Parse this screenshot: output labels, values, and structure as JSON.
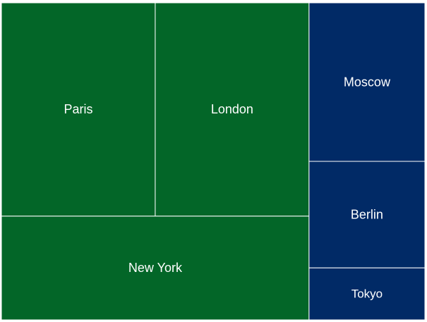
{
  "chart_data": {
    "type": "treemap",
    "title": "",
    "groups": [
      {
        "color": "#036628",
        "items": [
          {
            "label": "Paris",
            "value": 218
          },
          {
            "label": "London",
            "value": 218
          },
          {
            "label": "New York",
            "value": 212
          }
        ]
      },
      {
        "color": "#012A66",
        "items": [
          {
            "label": "Moscow",
            "value": 122
          },
          {
            "label": "Berlin",
            "value": 82
          },
          {
            "label": "Tokyo",
            "value": 40
          }
        ]
      }
    ]
  }
}
